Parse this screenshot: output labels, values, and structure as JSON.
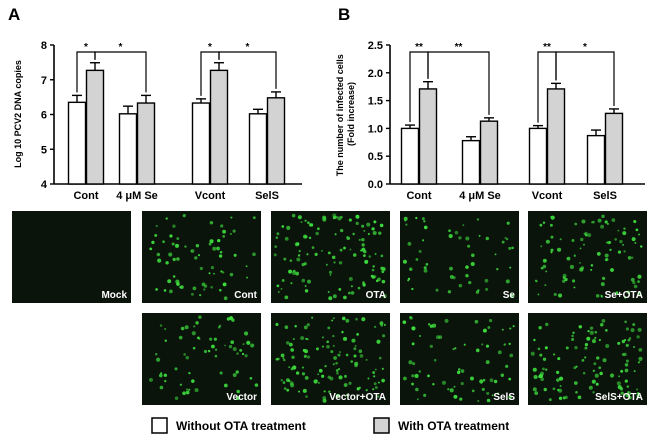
{
  "panels": {
    "a": "A",
    "b": "B"
  },
  "chart_data": [
    {
      "type": "bar",
      "panel": "A",
      "ylabel": "Log 10 PCV2 DNA copies",
      "ylim": [
        4,
        8
      ],
      "yticks": [
        "4",
        "5",
        "6",
        "7",
        "8"
      ],
      "categories": [
        "Cont",
        "4 μM Se",
        "Vcont",
        "SelS"
      ],
      "series": [
        {
          "name": "Without OTA treatment",
          "values": [
            6.35,
            6.02,
            6.33,
            6.02
          ],
          "errors": [
            0.2,
            0.22,
            0.12,
            0.13
          ]
        },
        {
          "name": "With OTA treatment",
          "values": [
            7.27,
            6.33,
            7.27,
            6.48
          ],
          "errors": [
            0.22,
            0.22,
            0.22,
            0.17
          ]
        }
      ],
      "significance": [
        {
          "label": "*",
          "from": [
            0,
            0
          ],
          "to": [
            0,
            1
          ]
        },
        {
          "label": "*",
          "from": [
            0,
            1
          ],
          "to": [
            1,
            1
          ]
        },
        {
          "label": "*",
          "from": [
            2,
            0
          ],
          "to": [
            2,
            1
          ]
        },
        {
          "label": "*",
          "from": [
            2,
            1
          ],
          "to": [
            3,
            1
          ]
        }
      ]
    },
    {
      "type": "bar",
      "panel": "B",
      "ylabel": "The number of infected cells (Fold increase)",
      "ylabel_lines": [
        "The number of infected cells",
        "(Fold increase)"
      ],
      "ylim": [
        0,
        2.5
      ],
      "yticks": [
        "0.0",
        "0.5",
        "1.0",
        "1.5",
        "2.0",
        "2.5"
      ],
      "categories": [
        "Cont",
        "4 μM Se",
        "Vcont",
        "SelS"
      ],
      "series": [
        {
          "name": "Without OTA treatment",
          "values": [
            1.0,
            0.78,
            1.0,
            0.87
          ],
          "errors": [
            0.06,
            0.07,
            0.05,
            0.1
          ]
        },
        {
          "name": "With OTA treatment",
          "values": [
            1.71,
            1.13,
            1.71,
            1.27
          ],
          "errors": [
            0.13,
            0.06,
            0.1,
            0.08
          ]
        }
      ],
      "significance": [
        {
          "label": "**",
          "from": [
            0,
            0
          ],
          "to": [
            0,
            1
          ]
        },
        {
          "label": "**",
          "from": [
            0,
            1
          ],
          "to": [
            1,
            1
          ]
        },
        {
          "label": "**",
          "from": [
            2,
            0
          ],
          "to": [
            2,
            1
          ]
        },
        {
          "label": "*",
          "from": [
            2,
            1
          ],
          "to": [
            3,
            1
          ]
        }
      ]
    }
  ],
  "micrographs": [
    {
      "label": "Mock",
      "density": 0
    },
    {
      "label": "Cont",
      "density": 70
    },
    {
      "label": "OTA",
      "density": 120
    },
    {
      "label": "Se",
      "density": 55
    },
    {
      "label": "Se+OTA",
      "density": 95
    },
    {
      "label": "Vector",
      "density": 65
    },
    {
      "label": "Vector+OTA",
      "density": 120
    },
    {
      "label": "SelS",
      "density": 70
    },
    {
      "label": "SelS+OTA",
      "density": 110
    }
  ],
  "legend": {
    "without": "Without OTA treatment",
    "with": "With OTA treatment"
  },
  "colors": {
    "without_fill": "#ffffff",
    "with_fill": "#d3d3d3",
    "stroke": "#000000",
    "tile_bg": "#0b140b",
    "cell": "#3ddc3d"
  }
}
